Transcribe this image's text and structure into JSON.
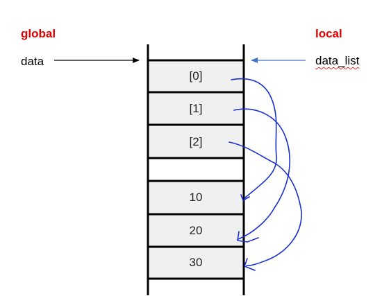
{
  "global_section": {
    "heading": "global",
    "variable": "data",
    "color": "#e00000"
  },
  "local_section": {
    "heading": "local",
    "variable": "data_list",
    "color": "#e00000"
  },
  "stack_cells": [
    {
      "label": "[0]"
    },
    {
      "label": "[1]"
    },
    {
      "label": "[2]"
    },
    {
      "label": ""
    },
    {
      "label": "10"
    },
    {
      "label": "20"
    },
    {
      "label": "30"
    }
  ],
  "colors": {
    "cell_fill": "#f0f0f0",
    "pointer_ink": "#1a2fd0",
    "local_arrow": "#4472c4"
  }
}
